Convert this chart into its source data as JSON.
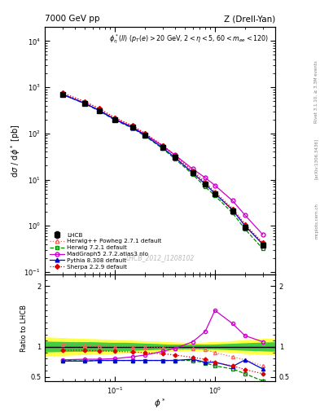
{
  "title_top": "7000 GeV pp",
  "title_right": "Z (Drell-Yan)",
  "annotation": "$\\phi^*_{\\eta}(ll)$ ($p_T(e) > 20$ GeV, $2 < \\eta < 5$, $60 < m_{ee} < 120$)",
  "watermark": "LHCB_2012_I1208102",
  "ylabel_main": "d$\\sigma$ / d$\\phi^*$ [pb]",
  "ylabel_ratio": "Ratio to LHCB",
  "xlabel": "$\\phi^*$",
  "right_label1": "Rivet 3.1.10, ≥ 3.3M events",
  "right_label2": "[arXiv:1306.3436]",
  "right_label3": "mcplots.cern.ch",
  "x": [
    0.03,
    0.05,
    0.07,
    0.1,
    0.15,
    0.2,
    0.3,
    0.4,
    0.6,
    0.8,
    1.0,
    1.5,
    2.0,
    3.0
  ],
  "lhcb": [
    700,
    450,
    310,
    200,
    135,
    92,
    50,
    30,
    14,
    8.0,
    5.0,
    2.1,
    0.95,
    0.38
  ],
  "lhcb_err": [
    25,
    18,
    12,
    8,
    5,
    3,
    2,
    1,
    0.6,
    0.35,
    0.22,
    0.12,
    0.07,
    0.03
  ],
  "herwig_powheg": [
    750,
    490,
    345,
    220,
    148,
    102,
    56,
    34,
    16,
    9,
    5.5,
    2.4,
    1.1,
    0.43
  ],
  "herwig721": [
    700,
    440,
    305,
    195,
    130,
    88,
    47,
    28,
    13,
    7,
    4.5,
    1.9,
    0.85,
    0.32
  ],
  "madgraph": [
    700,
    450,
    315,
    205,
    138,
    95,
    54,
    34,
    17,
    11,
    7.5,
    3.5,
    1.7,
    0.65
  ],
  "pythia": [
    700,
    450,
    315,
    200,
    134,
    91,
    49,
    30,
    14,
    8,
    5.0,
    2.2,
    1.0,
    0.4
  ],
  "sherpa": [
    750,
    490,
    345,
    218,
    146,
    100,
    54,
    33,
    15,
    8.5,
    5.2,
    2.3,
    1.05,
    0.43
  ],
  "ratio_herwig_powheg": [
    1.04,
    1.02,
    1.01,
    1.0,
    1.0,
    1.0,
    0.98,
    0.97,
    0.97,
    0.95,
    0.9,
    0.83,
    0.78,
    0.68
  ],
  "ratio_herwig721": [
    0.77,
    0.76,
    0.77,
    0.77,
    0.77,
    0.77,
    0.77,
    0.77,
    0.77,
    0.73,
    0.68,
    0.63,
    0.55,
    0.43
  ],
  "ratio_madgraph": [
    0.78,
    0.79,
    0.79,
    0.8,
    0.83,
    0.86,
    0.92,
    0.97,
    1.08,
    1.25,
    1.6,
    1.38,
    1.18,
    1.08
  ],
  "ratio_pythia": [
    0.76,
    0.76,
    0.77,
    0.77,
    0.77,
    0.77,
    0.77,
    0.77,
    0.79,
    0.74,
    0.74,
    0.67,
    0.78,
    0.63
  ],
  "ratio_sherpa": [
    0.94,
    0.94,
    0.93,
    0.92,
    0.91,
    0.9,
    0.88,
    0.86,
    0.82,
    0.79,
    0.74,
    0.68,
    0.62,
    0.55
  ],
  "band_x": [
    0.02,
    0.04,
    0.06,
    0.09,
    0.13,
    0.18,
    0.26,
    0.35,
    0.52,
    0.7,
    0.9,
    1.3,
    1.8,
    2.6,
    4.0
  ],
  "band_yellow_lo": [
    0.85,
    0.87,
    0.88,
    0.89,
    0.9,
    0.91,
    0.92,
    0.93,
    0.94,
    0.94,
    0.93,
    0.92,
    0.9,
    0.88,
    0.87
  ],
  "band_yellow_hi": [
    1.15,
    1.13,
    1.12,
    1.11,
    1.1,
    1.09,
    1.08,
    1.07,
    1.06,
    1.06,
    1.07,
    1.08,
    1.1,
    1.12,
    1.13
  ],
  "band_green_lo": [
    0.92,
    0.93,
    0.93,
    0.94,
    0.94,
    0.95,
    0.96,
    0.97,
    0.97,
    0.97,
    0.97,
    0.96,
    0.95,
    0.94,
    0.93
  ],
  "band_green_hi": [
    1.08,
    1.07,
    1.07,
    1.06,
    1.06,
    1.05,
    1.04,
    1.03,
    1.03,
    1.03,
    1.03,
    1.04,
    1.05,
    1.06,
    1.07
  ],
  "color_lhcb": "#000000",
  "color_herwig_powheg": "#ff6060",
  "color_herwig721": "#008800",
  "color_madgraph": "#cc00cc",
  "color_pythia": "#0000dd",
  "color_sherpa": "#dd0000",
  "xlim": [
    0.02,
    4.0
  ],
  "ylim_main": [
    0.09,
    20000
  ],
  "ylim_ratio": [
    0.42,
    2.2
  ]
}
